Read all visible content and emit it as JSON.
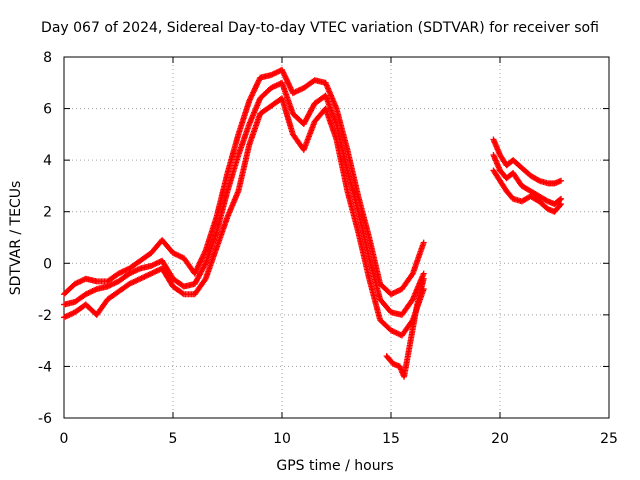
{
  "chart_data": {
    "type": "scatter",
    "title": "Day 067 of 2024, Sidereal Day-to-day VTEC variation (SDTVAR) for receiver sofi",
    "xlabel": "GPS time / hours",
    "ylabel": "SDTVAR / TECUs",
    "xlim": [
      0,
      25
    ],
    "ylim": [
      -6,
      8
    ],
    "x_ticks": [
      "0",
      "5",
      "10",
      "15",
      "20",
      "25"
    ],
    "y_ticks": [
      "-6",
      "-4",
      "-2",
      "0",
      "2",
      "4",
      "6",
      "8"
    ],
    "grid": true,
    "marker": "+",
    "color": "#ff0000",
    "series": [
      {
        "x": [
          0.0,
          0.5,
          1.0,
          1.5,
          2.0,
          2.5,
          3.0,
          3.5,
          4.0,
          4.5,
          5.0,
          5.5,
          6.0,
          6.5,
          7.0,
          7.5,
          8.0,
          8.5,
          9.0,
          9.5,
          10.0,
          10.5,
          11.0,
          11.5,
          12.0,
          12.5,
          13.0,
          13.5,
          14.0,
          14.5,
          15.0,
          15.5,
          16.0,
          16.5
        ],
        "y": [
          -1.2,
          -0.8,
          -0.6,
          -0.7,
          -0.7,
          -0.4,
          -0.2,
          0.1,
          0.4,
          0.9,
          0.4,
          0.2,
          -0.4,
          0.5,
          1.8,
          3.5,
          5.0,
          6.3,
          7.2,
          7.3,
          7.5,
          6.6,
          6.8,
          7.1,
          7.0,
          6.0,
          4.4,
          2.6,
          1.0,
          -0.8,
          -1.2,
          -1.0,
          -0.4,
          0.8
        ]
      },
      {
        "x": [
          0.0,
          0.5,
          1.0,
          1.5,
          2.0,
          2.5,
          3.0,
          3.5,
          4.0,
          4.5,
          5.0,
          5.5,
          6.0,
          6.5,
          7.0,
          7.5,
          8.0,
          8.5,
          9.0,
          9.5,
          10.0,
          10.5,
          11.0,
          11.5,
          12.0,
          12.5,
          13.0,
          13.5,
          14.0,
          14.5,
          15.0,
          15.5,
          16.0,
          16.5
        ],
        "y": [
          -1.6,
          -1.5,
          -1.2,
          -1.0,
          -0.9,
          -0.7,
          -0.4,
          -0.2,
          -0.1,
          0.1,
          -0.6,
          -0.9,
          -0.8,
          0.0,
          1.2,
          2.8,
          4.2,
          5.4,
          6.4,
          6.8,
          7.0,
          5.8,
          5.4,
          6.2,
          6.5,
          5.4,
          3.6,
          2.0,
          0.2,
          -1.4,
          -1.9,
          -2.0,
          -1.4,
          -0.4
        ]
      },
      {
        "x": [
          0.0,
          0.5,
          1.0,
          1.5,
          2.0,
          2.5,
          3.0,
          3.5,
          4.0,
          4.5,
          5.0,
          5.5,
          6.0,
          6.5,
          7.0,
          7.5,
          8.0,
          8.5,
          9.0,
          9.5,
          10.0,
          10.5,
          11.0,
          11.5,
          12.0,
          12.5,
          13.0,
          13.5,
          14.0,
          14.5,
          15.0,
          15.5,
          16.0,
          16.5
        ],
        "y": [
          -2.1,
          -1.9,
          -1.6,
          -2.0,
          -1.4,
          -1.1,
          -0.8,
          -0.6,
          -0.4,
          -0.2,
          -0.9,
          -1.2,
          -1.2,
          -0.6,
          0.6,
          1.8,
          2.8,
          4.6,
          5.8,
          6.1,
          6.4,
          5.0,
          4.4,
          5.5,
          6.0,
          4.8,
          2.8,
          1.2,
          -0.6,
          -2.2,
          -2.6,
          -2.8,
          -2.2,
          -1.0
        ]
      },
      {
        "x": [
          14.8,
          15.1,
          15.4,
          15.6,
          15.9,
          16.2,
          16.5
        ],
        "y": [
          -3.6,
          -3.9,
          -4.0,
          -4.4,
          -3.0,
          -1.6,
          -0.6
        ]
      },
      {
        "x": [
          19.7,
          20.0,
          20.3,
          20.6,
          21.0,
          21.4,
          21.8,
          22.2,
          22.5,
          22.8
        ],
        "y": [
          4.8,
          4.2,
          3.8,
          4.0,
          3.7,
          3.4,
          3.2,
          3.1,
          3.1,
          3.2
        ]
      },
      {
        "x": [
          19.7,
          20.0,
          20.3,
          20.6,
          21.0,
          21.4,
          21.8,
          22.2,
          22.5,
          22.8
        ],
        "y": [
          4.2,
          3.6,
          3.3,
          3.5,
          3.0,
          2.8,
          2.6,
          2.4,
          2.3,
          2.5
        ]
      },
      {
        "x": [
          19.7,
          20.0,
          20.3,
          20.6,
          21.0,
          21.4,
          21.8,
          22.2,
          22.5,
          22.8
        ],
        "y": [
          3.6,
          3.2,
          2.8,
          2.5,
          2.4,
          2.6,
          2.4,
          2.1,
          2.0,
          2.3
        ]
      }
    ]
  }
}
